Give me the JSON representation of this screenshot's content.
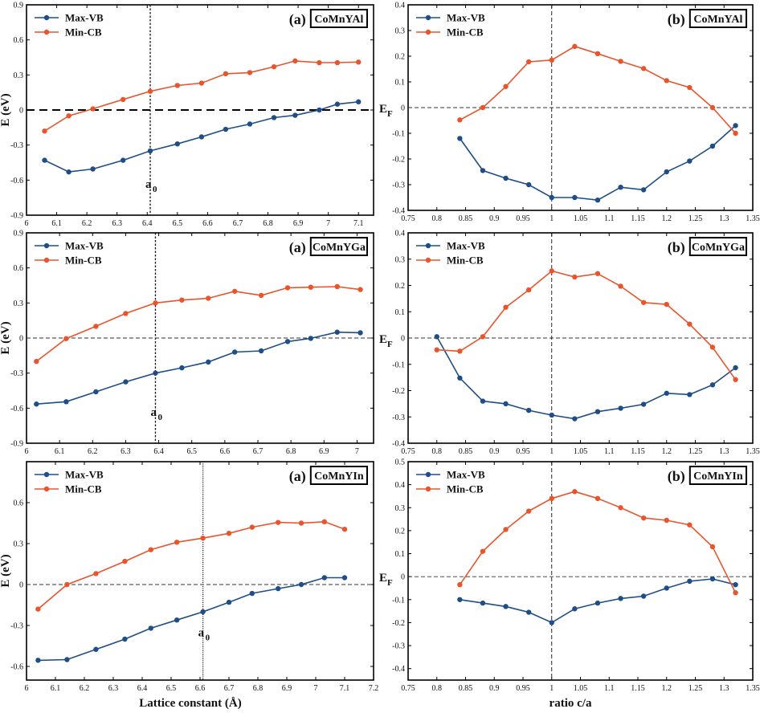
{
  "colors": {
    "vb": "#1f4e86",
    "cb": "#e8552d",
    "axis": "#000000"
  },
  "bottom_labels": {
    "left": "Lattice constant (Å)",
    "right": "ratio c/a"
  },
  "chart_data": [
    {
      "type": "line",
      "panel_label": "(a)",
      "compound": "CoMnYAl",
      "ylabel": "E (eV)",
      "xlim": [
        6.0,
        7.15
      ],
      "ylim": [
        -0.9,
        0.9
      ],
      "xticks": [
        "6",
        "6.1",
        "6.2",
        "6.3",
        "6.4",
        "6.5",
        "6.6",
        "6.7",
        "6.8",
        "6.9",
        "7",
        "7.1"
      ],
      "yticks": [
        "-0.9",
        "-0.6",
        "-0.3",
        "0",
        "0.3",
        "0.6",
        "0.9"
      ],
      "ref_vertical": 6.41,
      "ref_vertical_label": "a",
      "ref_vertical_sub": "0",
      "ref_horizontal": 0,
      "series": [
        {
          "name": "Max-VB",
          "x": [
            6.06,
            6.14,
            6.22,
            6.32,
            6.41,
            6.5,
            6.58,
            6.66,
            6.74,
            6.82,
            6.89,
            6.97,
            7.03,
            7.1
          ],
          "values": [
            -0.43,
            -0.53,
            -0.505,
            -0.43,
            -0.35,
            -0.29,
            -0.23,
            -0.165,
            -0.12,
            -0.065,
            -0.045,
            0.0,
            0.05,
            0.07
          ]
        },
        {
          "name": "Min-CB",
          "x": [
            6.06,
            6.14,
            6.22,
            6.32,
            6.41,
            6.5,
            6.58,
            6.66,
            6.74,
            6.82,
            6.89,
            6.97,
            7.03,
            7.1
          ],
          "values": [
            -0.18,
            -0.05,
            0.01,
            0.09,
            0.16,
            0.21,
            0.23,
            0.31,
            0.32,
            0.37,
            0.42,
            0.405,
            0.405,
            0.41
          ]
        }
      ]
    },
    {
      "type": "line",
      "panel_label": "(b)",
      "compound": "CoMnYAl",
      "ylabel": "E",
      "ylabel_sub": "F",
      "xlim": [
        0.75,
        1.35
      ],
      "ylim": [
        -0.4,
        0.4
      ],
      "xticks": [
        "0.75",
        "0.8",
        "0.85",
        "0.9",
        "0.95",
        "1",
        "1.05",
        "1.1",
        "1.15",
        "1.2",
        "1.25",
        "1.3",
        "1.35"
      ],
      "yticks": [
        "-0.4",
        "-0.3",
        "-0.2",
        "-0.1",
        "0",
        "0.1",
        "0.2",
        "0.3",
        "0.4"
      ],
      "ref_vertical": 1.0,
      "ref_horizontal": 0,
      "series": [
        {
          "name": "Max-VB",
          "x": [
            0.84,
            0.88,
            0.92,
            0.96,
            1.0,
            1.04,
            1.08,
            1.12,
            1.16,
            1.2,
            1.24,
            1.28,
            1.32
          ],
          "values": [
            -0.12,
            -0.245,
            -0.275,
            -0.3,
            -0.35,
            -0.35,
            -0.36,
            -0.31,
            -0.32,
            -0.25,
            -0.208,
            -0.15,
            -0.07
          ]
        },
        {
          "name": "Min-CB",
          "x": [
            0.84,
            0.88,
            0.92,
            0.96,
            1.0,
            1.04,
            1.08,
            1.12,
            1.16,
            1.2,
            1.24,
            1.28,
            1.32
          ],
          "values": [
            -0.048,
            0.0,
            0.082,
            0.178,
            0.185,
            0.238,
            0.21,
            0.18,
            0.152,
            0.105,
            0.078,
            0.0,
            -0.1
          ]
        }
      ]
    },
    {
      "type": "line",
      "panel_label": "(a)",
      "compound": "CoMnYGa",
      "ylabel": "E (eV)",
      "xlim": [
        6.0,
        7.05
      ],
      "ylim": [
        -0.9,
        0.9
      ],
      "xticks": [
        "6",
        "6.1",
        "6.2",
        "6.3",
        "6.4",
        "6.5",
        "6.6",
        "6.7",
        "6.8",
        "6.9",
        "7"
      ],
      "yticks": [
        "-0.9",
        "-0.6",
        "-0.3",
        "0",
        "0.3",
        "0.6",
        "0.9"
      ],
      "ref_vertical": 6.39,
      "ref_vertical_label": "a",
      "ref_vertical_sub": "0",
      "ref_horizontal": 0,
      "series": [
        {
          "name": "Max-VB",
          "x": [
            6.03,
            6.12,
            6.21,
            6.3,
            6.39,
            6.47,
            6.55,
            6.63,
            6.71,
            6.79,
            6.86,
            6.94,
            7.01
          ],
          "values": [
            -0.565,
            -0.545,
            -0.46,
            -0.375,
            -0.3,
            -0.255,
            -0.205,
            -0.12,
            -0.11,
            -0.03,
            -0.003,
            0.05,
            0.045
          ]
        },
        {
          "name": "Min-CB",
          "x": [
            6.03,
            6.12,
            6.21,
            6.3,
            6.39,
            6.47,
            6.55,
            6.63,
            6.71,
            6.79,
            6.86,
            6.94,
            7.01
          ],
          "values": [
            -0.2,
            -0.005,
            0.1,
            0.21,
            0.3,
            0.325,
            0.34,
            0.4,
            0.365,
            0.43,
            0.435,
            0.44,
            0.415
          ]
        }
      ]
    },
    {
      "type": "line",
      "panel_label": "(b)",
      "compound": "CoMnYGa",
      "ylabel": "E",
      "ylabel_sub": "F",
      "xlim": [
        0.75,
        1.35
      ],
      "ylim": [
        -0.4,
        0.4
      ],
      "xticks": [
        "0.75",
        "0.8",
        "0.85",
        "0.9",
        "0.95",
        "1",
        "1.05",
        "1.1",
        "1.15",
        "1.2",
        "1.25",
        "1.3",
        "1.35"
      ],
      "yticks": [
        "-0.4",
        "-0.3",
        "-0.2",
        "-0.1",
        "0",
        "0.1",
        "0.2",
        "0.3",
        "0.4"
      ],
      "ref_vertical": 1.0,
      "ref_horizontal": 0,
      "series": [
        {
          "name": "Max-VB",
          "x": [
            0.8,
            0.84,
            0.88,
            0.92,
            0.96,
            1.0,
            1.04,
            1.08,
            1.12,
            1.16,
            1.2,
            1.24,
            1.28,
            1.32
          ],
          "values": [
            0.005,
            -0.152,
            -0.24,
            -0.25,
            -0.275,
            -0.293,
            -0.307,
            -0.28,
            -0.267,
            -0.252,
            -0.21,
            -0.215,
            -0.178,
            -0.113
          ]
        },
        {
          "name": "Min-CB",
          "x": [
            0.8,
            0.84,
            0.88,
            0.92,
            0.96,
            1.0,
            1.04,
            1.08,
            1.12,
            1.16,
            1.2,
            1.24,
            1.28,
            1.32
          ],
          "values": [
            -0.045,
            -0.05,
            0.005,
            0.117,
            0.183,
            0.255,
            0.232,
            0.245,
            0.197,
            0.135,
            0.128,
            0.053,
            -0.035,
            -0.158
          ]
        }
      ]
    },
    {
      "type": "line",
      "panel_label": "(a)",
      "compound": "CoMnYIn",
      "ylabel": "E (eV)",
      "xlim": [
        6.0,
        7.2
      ],
      "ylim": [
        -0.7,
        0.9
      ],
      "xticks": [
        "6",
        "6.1",
        "6.2",
        "6.3",
        "6.4",
        "6.5",
        "6.6",
        "6.7",
        "6.8",
        "6.9",
        "7",
        "7.1",
        "7.2"
      ],
      "yticks": [
        "-0.6",
        "-0.3",
        "0",
        "0.3",
        "0.6"
      ],
      "ref_vertical": 6.61,
      "ref_vertical_label": "a",
      "ref_vertical_sub": "0",
      "ref_horizontal": 0,
      "series": [
        {
          "name": "Max-VB",
          "x": [
            6.04,
            6.14,
            6.24,
            6.34,
            6.43,
            6.52,
            6.61,
            6.7,
            6.78,
            6.87,
            6.95,
            7.03,
            7.1
          ],
          "values": [
            -0.555,
            -0.55,
            -0.475,
            -0.4,
            -0.32,
            -0.26,
            -0.2,
            -0.13,
            -0.065,
            -0.03,
            0.0,
            0.05,
            0.05
          ]
        },
        {
          "name": "Min-CB",
          "x": [
            6.04,
            6.14,
            6.24,
            6.34,
            6.43,
            6.52,
            6.61,
            6.7,
            6.78,
            6.87,
            6.95,
            7.03,
            7.1
          ],
          "values": [
            -0.18,
            0.0,
            0.08,
            0.17,
            0.255,
            0.31,
            0.34,
            0.375,
            0.42,
            0.455,
            0.45,
            0.46,
            0.405
          ]
        }
      ]
    },
    {
      "type": "line",
      "panel_label": "(b)",
      "compound": "CoMnYIn",
      "ylabel": "E",
      "ylabel_sub": "F",
      "xlim": [
        0.75,
        1.35
      ],
      "ylim": [
        -0.45,
        0.5
      ],
      "xticks": [
        "0.75",
        "0.8",
        "0.85",
        "0.9",
        "0.95",
        "1",
        "1.05",
        "1.1",
        "1.15",
        "1.2",
        "1.25",
        "1.3",
        "1.35"
      ],
      "yticks": [
        "-0.4",
        "-0.3",
        "-0.2",
        "-0.1",
        "0",
        "0.1",
        "0.2",
        "0.3",
        "0.4",
        "0.5"
      ],
      "ref_vertical": 1.0,
      "ref_horizontal": 0,
      "series": [
        {
          "name": "Max-VB",
          "x": [
            0.84,
            0.88,
            0.92,
            0.96,
            1.0,
            1.04,
            1.08,
            1.12,
            1.16,
            1.2,
            1.24,
            1.28,
            1.32
          ],
          "values": [
            -0.1,
            -0.115,
            -0.13,
            -0.155,
            -0.2,
            -0.14,
            -0.115,
            -0.095,
            -0.085,
            -0.05,
            -0.02,
            -0.01,
            -0.035
          ]
        },
        {
          "name": "Min-CB",
          "x": [
            0.84,
            0.88,
            0.92,
            0.96,
            1.0,
            1.04,
            1.08,
            1.12,
            1.16,
            1.2,
            1.24,
            1.28,
            1.32
          ],
          "values": [
            -0.035,
            0.11,
            0.205,
            0.285,
            0.34,
            0.37,
            0.34,
            0.3,
            0.255,
            0.245,
            0.225,
            0.13,
            -0.07
          ]
        }
      ]
    }
  ]
}
